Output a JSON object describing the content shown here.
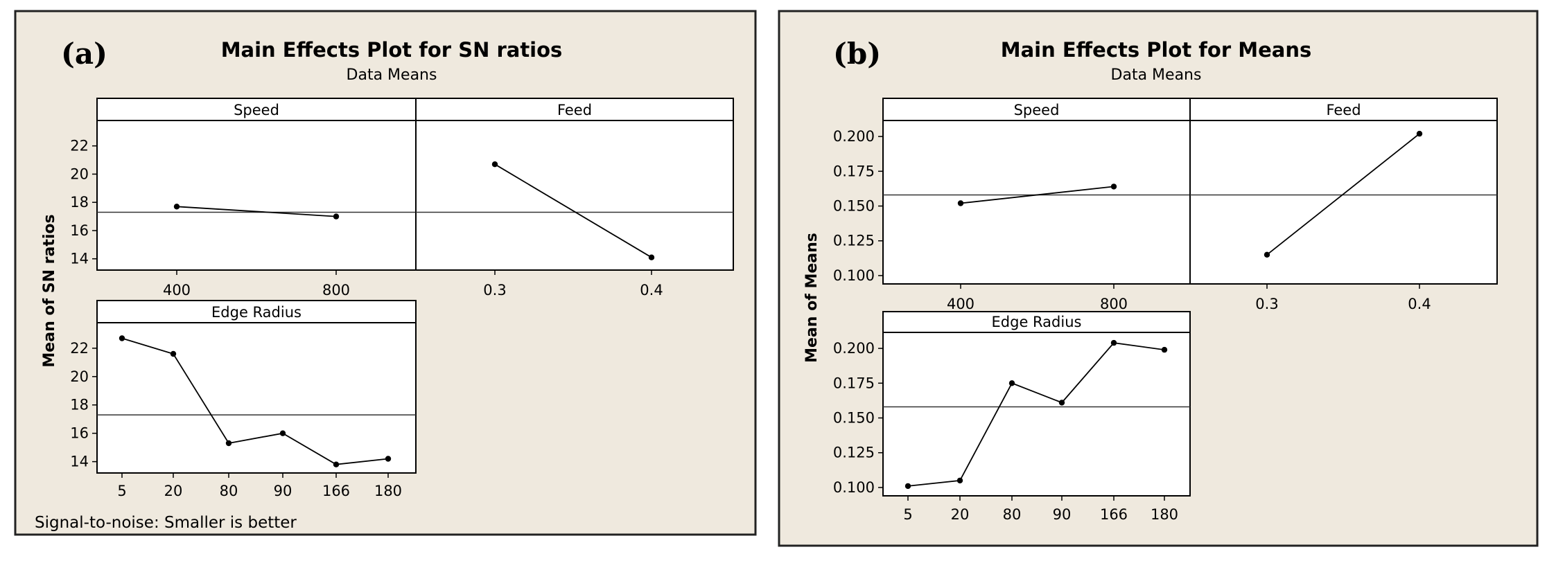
{
  "colors": {
    "panel_background": "#efe9de",
    "plot_background": "#ffffff",
    "line": "#000000"
  },
  "chart_data": [
    {
      "type": "line",
      "panel_label": "(a)",
      "title": "Main Effects Plot for SN ratios",
      "subtitle": "Data Means",
      "ylabel": "Mean of SN ratios",
      "footnote": "Signal-to-noise: Smaller is better",
      "ylim": [
        13.2,
        23.8
      ],
      "yticks": [
        "14",
        "16",
        "18",
        "20",
        "22"
      ],
      "overall_mean": 17.3,
      "factors": [
        {
          "name": "Speed",
          "categories": [
            "400",
            "800"
          ],
          "values": [
            17.7,
            17.0
          ]
        },
        {
          "name": "Feed",
          "categories": [
            "0.3",
            "0.4"
          ],
          "values": [
            20.7,
            14.1
          ]
        },
        {
          "name": "Edge Radius",
          "categories": [
            "5",
            "20",
            "80",
            "90",
            "166",
            "180"
          ],
          "values": [
            22.7,
            21.6,
            15.3,
            16.0,
            13.8,
            14.2
          ]
        }
      ]
    },
    {
      "type": "line",
      "panel_label": "(b)",
      "title": "Main Effects Plot for Means",
      "subtitle": "Data Means",
      "ylabel": "Mean of Means",
      "ylim": [
        0.094,
        0.2115
      ],
      "yticks": [
        "0.100",
        "0.125",
        "0.150",
        "0.175",
        "0.200"
      ],
      "overall_mean": 0.158,
      "factors": [
        {
          "name": "Speed",
          "categories": [
            "400",
            "800"
          ],
          "values": [
            0.152,
            0.164
          ]
        },
        {
          "name": "Feed",
          "categories": [
            "0.3",
            "0.4"
          ],
          "values": [
            0.115,
            0.202
          ]
        },
        {
          "name": "Edge Radius",
          "categories": [
            "5",
            "20",
            "80",
            "90",
            "166",
            "180"
          ],
          "values": [
            0.101,
            0.105,
            0.175,
            0.161,
            0.204,
            0.199
          ]
        }
      ]
    }
  ]
}
